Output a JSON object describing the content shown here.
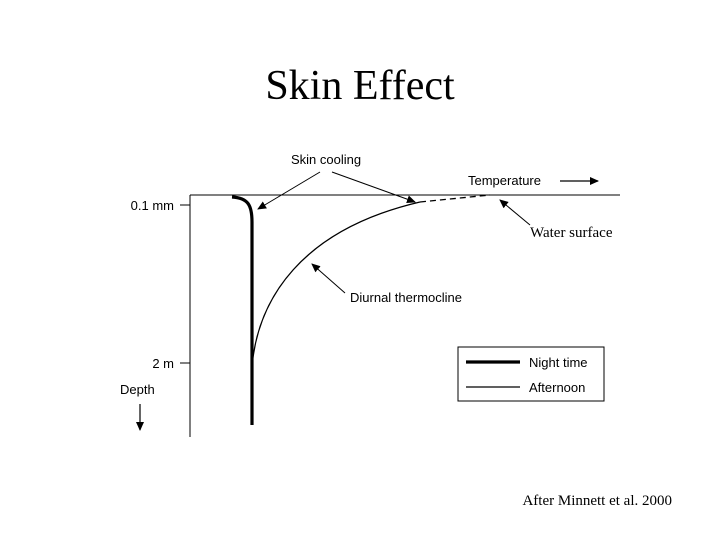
{
  "slide": {
    "title": "Skin Effect",
    "credit": "After Minnett et al. 2000"
  },
  "diagram": {
    "axis_labels": {
      "top_tick": "0.1 mm",
      "bottom_tick": "2 m",
      "vertical": "Depth",
      "horizontal": "Temperature"
    },
    "annotations": {
      "skin_cooling": "Skin cooling",
      "water_surface": "Water surface",
      "diurnal_thermocline": "Diurnal thermocline"
    },
    "legend": [
      {
        "label": "Night time",
        "style": "thick"
      },
      {
        "label": "Afternoon",
        "style": "thin"
      }
    ]
  }
}
